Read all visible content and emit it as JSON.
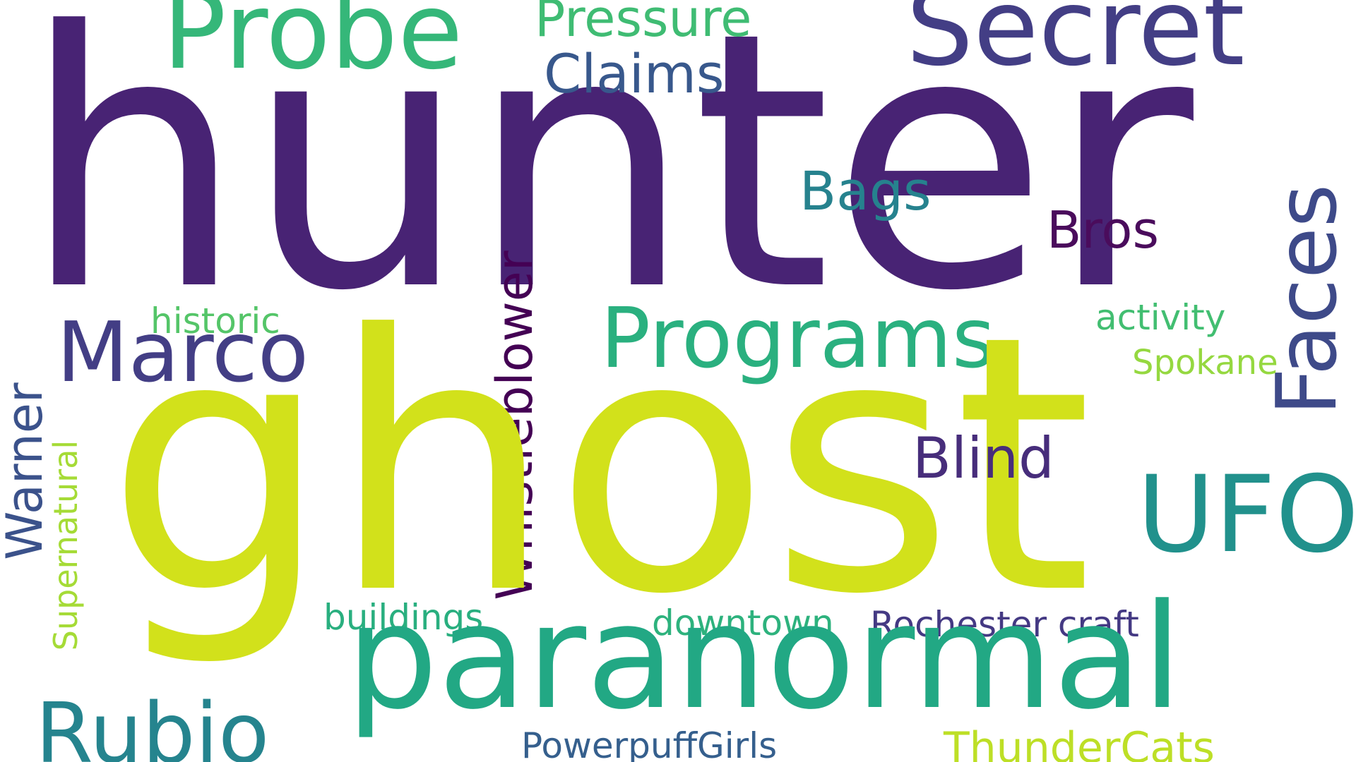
{
  "words": {
    "hunter": {
      "text": "hunter",
      "color": "#482374"
    },
    "ghost": {
      "text": "ghost",
      "color": "#d2e11b"
    },
    "paranormal": {
      "text": "paranormal",
      "color": "#22a884"
    },
    "secret": {
      "text": "Secret",
      "color": "#433e85"
    },
    "probe": {
      "text": "Probe",
      "color": "#35b779"
    },
    "pressure": {
      "text": "Pressure",
      "color": "#3fbc73"
    },
    "claims": {
      "text": "Claims",
      "color": "#38588c"
    },
    "bags": {
      "text": "Bags",
      "color": "#26828e"
    },
    "bros": {
      "text": "Bros",
      "color": "#4a0c5c"
    },
    "programs": {
      "text": "Programs",
      "color": "#2ab07f"
    },
    "marco": {
      "text": "Marco",
      "color": "#433e85"
    },
    "historic": {
      "text": "historic",
      "color": "#54c568"
    },
    "activity": {
      "text": "activity",
      "color": "#42be71"
    },
    "spokane": {
      "text": "Spokane",
      "color": "#95d840"
    },
    "blind": {
      "text": "Blind",
      "color": "#472d7b"
    },
    "ufo": {
      "text": "UFO",
      "color": "#21918c"
    },
    "whistleblower": {
      "text": "Whistleblower",
      "color": "#440154"
    },
    "faces": {
      "text": "Faces",
      "color": "#3e4a89"
    },
    "warner": {
      "text": "Warner",
      "color": "#3b528b"
    },
    "supernatural": {
      "text": "Supernatural",
      "color": "#a5db36"
    },
    "buildings": {
      "text": "buildings",
      "color": "#29af7f"
    },
    "downtown": {
      "text": "downtown",
      "color": "#2db27d"
    },
    "rochester_craft": {
      "text": "Rochester craft",
      "color": "#443983"
    },
    "powerpuffgirls": {
      "text": "PowerpuffGirls",
      "color": "#355f8d"
    },
    "thundercats": {
      "text": "ThunderCats",
      "color": "#bddf26"
    },
    "rubio": {
      "text": "Rubio",
      "color": "#25848e"
    }
  }
}
